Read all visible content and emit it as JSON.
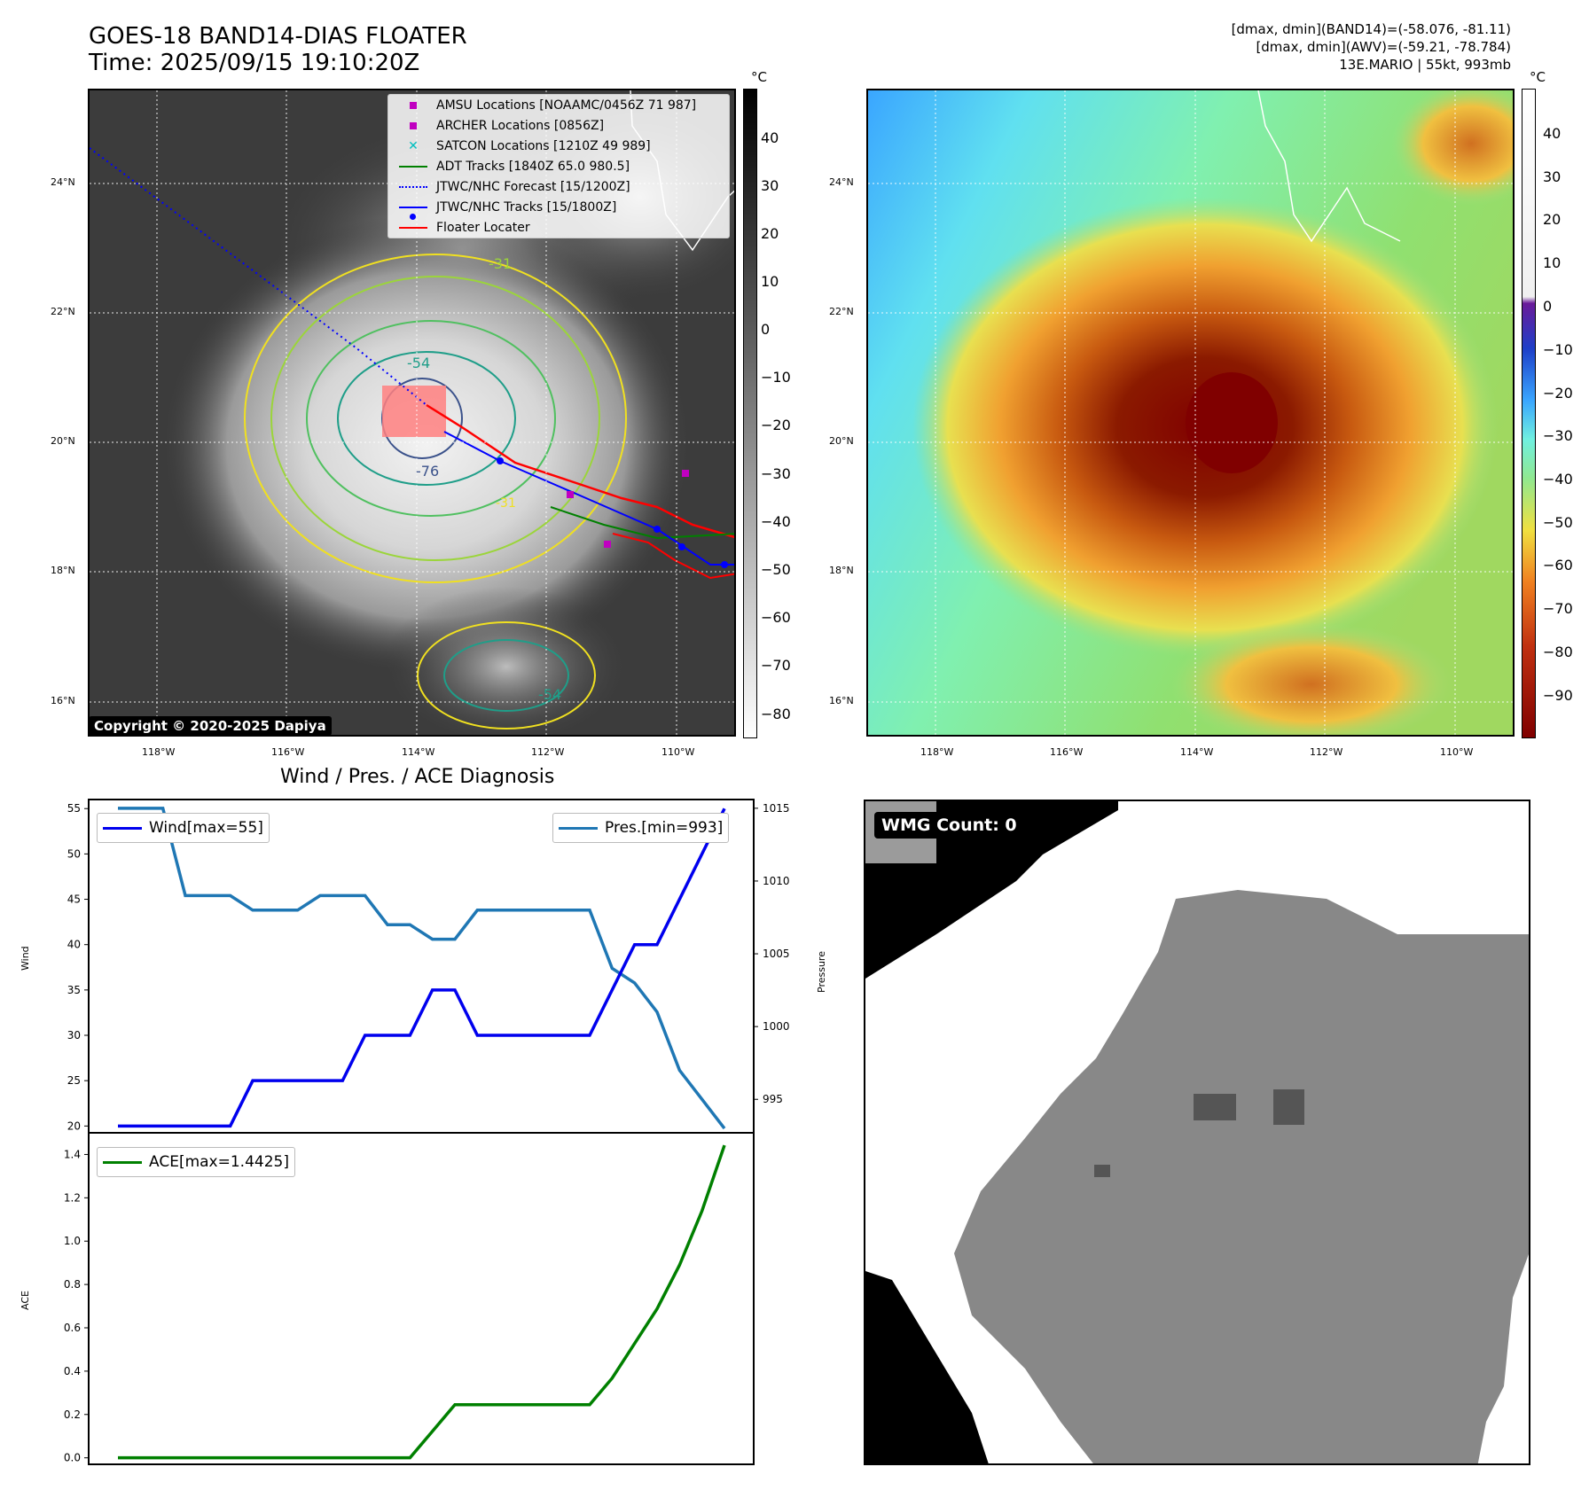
{
  "header": {
    "title_line1": "GOES-18 BAND14-DIAS FLOATER",
    "title_line2": "Time: 2025/09/15 19:10:20Z",
    "meta_line1": "[dmax, dmin](BAND14)=(-58.076, -81.11)",
    "meta_line2": "[dmax, dmin](AWV)=(-59.21, -78.784)",
    "meta_line3": "13E.MARIO | 55kt, 993mb"
  },
  "map": {
    "lon_labels": [
      "118°W",
      "116°W",
      "114°W",
      "112°W",
      "110°W"
    ],
    "lat_labels": [
      "24°N",
      "22°N",
      "20°N",
      "18°N",
      "16°N"
    ],
    "contour_labels": [
      "-31",
      "-54",
      "-76",
      "-31",
      "-54"
    ],
    "copyright": "Copyright © 2020-2025 Dapiya"
  },
  "colorbars": {
    "unit": "°C",
    "left_ticks": [
      "40",
      "30",
      "20",
      "10",
      "0",
      "−10",
      "−20",
      "−30",
      "−40",
      "−50",
      "−60",
      "−70",
      "−80"
    ],
    "right_ticks": [
      "40",
      "30",
      "20",
      "10",
      "0",
      "−10",
      "−20",
      "−30",
      "−40",
      "−50",
      "−60",
      "−70",
      "−80",
      "−90"
    ]
  },
  "legend": {
    "items": [
      {
        "label": "AMSU Locations [NOAAMC/0456Z 71 987]",
        "color": "#c000c0",
        "kind": "square"
      },
      {
        "label": "ARCHER Locations [0856Z]",
        "color": "#c000c0",
        "kind": "square"
      },
      {
        "label": "SATCON Locations [1210Z 49 989]",
        "color": "#00bfbf",
        "kind": "x"
      },
      {
        "label": "ADT Tracks [1840Z 65.0 980.5]",
        "color": "#008000",
        "kind": "line"
      },
      {
        "label": "JTWC/NHC Forecast [15/1200Z]",
        "color": "#0000ff",
        "kind": "dotted"
      },
      {
        "label": "JTWC/NHC Tracks [15/1800Z]",
        "color": "#0000ff",
        "kind": "marker-line"
      },
      {
        "label": "Floater Locater",
        "color": "#ff0000",
        "kind": "line"
      }
    ]
  },
  "diagnosis": {
    "title": "Wind / Pres. / ACE Diagnosis",
    "wind_legend": "Wind[max=55]",
    "pres_legend": "Pres.[min=993]",
    "ace_legend": "ACE[max=1.4425]",
    "wind_axis_label": "Wind",
    "pres_axis_label": "Pressure",
    "ace_axis_label": "ACE"
  },
  "wmg": {
    "label": "WMG Count: 0"
  },
  "chart_data": [
    {
      "type": "line",
      "title": "Wind / Pres. / ACE Diagnosis",
      "ylabel": "Wind",
      "ylim": [
        19.25,
        56
      ],
      "yticks": [
        20,
        25,
        30,
        35,
        40,
        45,
        50,
        55
      ],
      "series": [
        {
          "name": "Wind[max=55]",
          "color": "#0000ee",
          "x": [
            0,
            1,
            2,
            3,
            4,
            5,
            6,
            7,
            8,
            9,
            10,
            11,
            12,
            13,
            14,
            15,
            16,
            17,
            18,
            19,
            20,
            21,
            22,
            23,
            24,
            25,
            26,
            27
          ],
          "values": [
            20,
            20,
            20,
            20,
            20,
            20,
            25,
            25,
            25,
            25,
            25,
            30,
            30,
            30,
            35,
            35,
            30,
            30,
            30,
            30,
            30,
            30,
            35,
            40,
            40,
            45,
            50,
            55
          ]
        }
      ]
    },
    {
      "type": "line",
      "ylabel": "Pressure",
      "ylim": [
        992.7,
        1015.6
      ],
      "yticks": [
        995,
        1000,
        1005,
        1010,
        1015
      ],
      "series": [
        {
          "name": "Pres.[min=993]",
          "color": "#1f77b4",
          "x": [
            0,
            1,
            2,
            3,
            4,
            5,
            6,
            7,
            8,
            9,
            10,
            11,
            12,
            13,
            14,
            15,
            16,
            17,
            18,
            19,
            20,
            21,
            22,
            23,
            24,
            25,
            26,
            27
          ],
          "values": [
            1015,
            1015,
            1015,
            1009,
            1009,
            1009,
            1008,
            1008,
            1008,
            1009,
            1009,
            1009,
            1007,
            1007,
            1006,
            1006,
            1008,
            1008,
            1008,
            1008,
            1008,
            1008,
            1004,
            1003,
            1001,
            997,
            995,
            993
          ]
        }
      ]
    },
    {
      "type": "line",
      "ylabel": "ACE",
      "ylim": [
        -0.03,
        1.5
      ],
      "yticks": [
        0.0,
        0.2,
        0.4,
        0.6,
        0.8,
        1.0,
        1.2,
        1.4
      ],
      "series": [
        {
          "name": "ACE[max=1.4425]",
          "color": "#008000",
          "x": [
            0,
            1,
            2,
            3,
            4,
            5,
            6,
            7,
            8,
            9,
            10,
            11,
            12,
            13,
            14,
            15,
            16,
            17,
            18,
            19,
            20,
            21,
            22,
            23,
            24,
            25,
            26,
            27
          ],
          "values": [
            0,
            0,
            0,
            0,
            0,
            0,
            0,
            0,
            0,
            0,
            0,
            0,
            0,
            0.0,
            0.1225,
            0.245,
            0.245,
            0.245,
            0.245,
            0.245,
            0.245,
            0.245,
            0.3675,
            0.5275,
            0.6875,
            0.8895,
            1.1395,
            1.4425
          ]
        }
      ]
    }
  ]
}
